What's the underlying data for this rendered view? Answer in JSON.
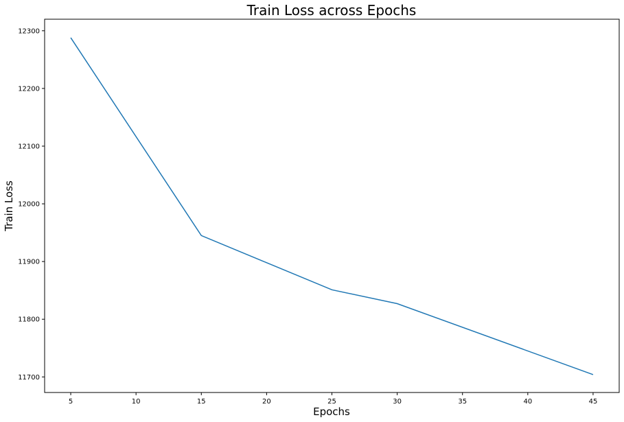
{
  "chart_data": {
    "type": "line",
    "title": "Train Loss across Epochs",
    "xlabel": "Epochs",
    "ylabel": "Train Loss",
    "x": [
      5,
      15,
      25,
      30,
      45
    ],
    "series": [
      {
        "values": [
          12288,
          11945,
          11851,
          11827,
          11704
        ],
        "color": "#1f77b4"
      }
    ],
    "xticks": [
      5,
      10,
      15,
      20,
      25,
      30,
      35,
      40,
      45
    ],
    "yticks": [
      11700,
      11800,
      11900,
      12000,
      12100,
      12200,
      12300
    ],
    "xlim": [
      3,
      47
    ],
    "ylim": [
      11673,
      12320
    ],
    "grid": false
  }
}
